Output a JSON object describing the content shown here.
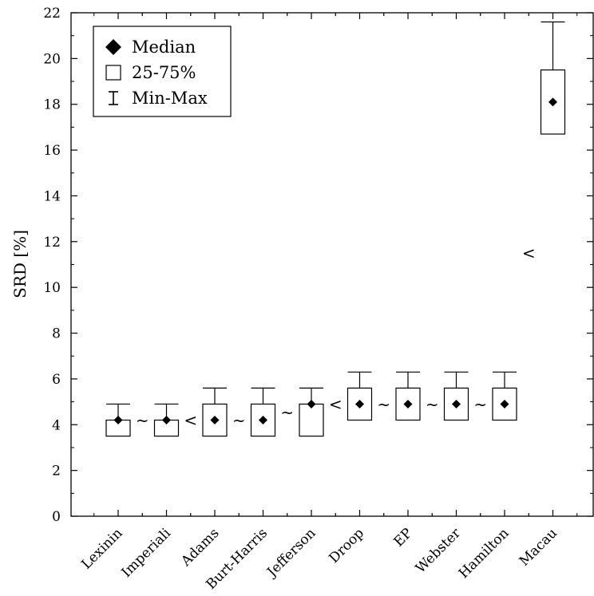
{
  "chart_data": {
    "type": "box",
    "title": "",
    "xlabel": "",
    "ylabel": "SRD [%]",
    "ylim": [
      0,
      22
    ],
    "yticks": [
      0,
      2,
      4,
      6,
      8,
      10,
      12,
      14,
      16,
      18,
      20,
      22
    ],
    "grid": false,
    "legend": {
      "position": "top-left",
      "entries": [
        {
          "symbol": "diamond",
          "label": "Median"
        },
        {
          "symbol": "box",
          "label": "25-75%"
        },
        {
          "symbol": "whisker",
          "label": "Min-Max"
        }
      ]
    },
    "categories": [
      "Lexinin",
      "Imperiali",
      "Adams",
      "Burt-Harris",
      "Jefferson",
      "Droop",
      "EP",
      "Webster",
      "Hamilton",
      "Macau"
    ],
    "boxes": [
      {
        "category": "Lexinin",
        "min": 3.5,
        "q1": 3.5,
        "median": 4.2,
        "q3": 4.2,
        "max": 4.9
      },
      {
        "category": "Imperiali",
        "min": 3.5,
        "q1": 3.5,
        "median": 4.2,
        "q3": 4.2,
        "max": 4.9
      },
      {
        "category": "Adams",
        "min": 3.5,
        "q1": 3.5,
        "median": 4.2,
        "q3": 4.9,
        "max": 5.6
      },
      {
        "category": "Burt-Harris",
        "min": 3.5,
        "q1": 3.5,
        "median": 4.2,
        "q3": 4.9,
        "max": 5.6
      },
      {
        "category": "Jefferson",
        "min": 3.5,
        "q1": 3.5,
        "median": 4.9,
        "q3": 4.9,
        "max": 5.6
      },
      {
        "category": "Droop",
        "min": 4.2,
        "q1": 4.2,
        "median": 4.9,
        "q3": 5.6,
        "max": 6.3
      },
      {
        "category": "EP",
        "min": 4.2,
        "q1": 4.2,
        "median": 4.9,
        "q3": 5.6,
        "max": 6.3
      },
      {
        "category": "Webster",
        "min": 4.2,
        "q1": 4.2,
        "median": 4.9,
        "q3": 5.6,
        "max": 6.3
      },
      {
        "category": "Hamilton",
        "min": 4.2,
        "q1": 4.2,
        "median": 4.9,
        "q3": 5.6,
        "max": 6.3
      },
      {
        "category": "Macau",
        "min": 16.7,
        "q1": 16.7,
        "median": 18.1,
        "q3": 19.5,
        "max": 21.6
      }
    ],
    "relations": [
      {
        "after": "Lexinin",
        "symbol": "~"
      },
      {
        "after": "Imperiali",
        "symbol": "<"
      },
      {
        "after": "Adams",
        "symbol": "~"
      },
      {
        "after": "Burt-Harris",
        "symbol": "~"
      },
      {
        "after": "Jefferson",
        "symbol": "<"
      },
      {
        "after": "Droop",
        "symbol": "~"
      },
      {
        "after": "EP",
        "symbol": "~"
      },
      {
        "after": "Webster",
        "symbol": "~"
      },
      {
        "after": "Hamilton",
        "symbol": "<"
      }
    ]
  }
}
